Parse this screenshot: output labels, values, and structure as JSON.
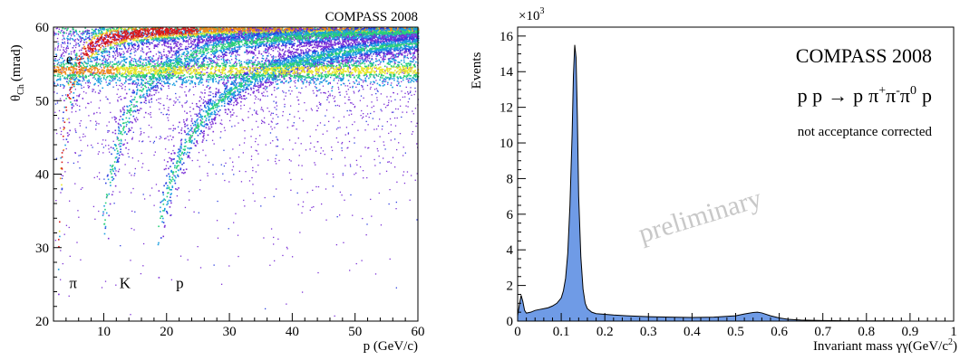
{
  "chart_data": [
    {
      "type": "heatmap",
      "title": "COMPASS 2008",
      "xlabel": "p (GeV/c)",
      "ylabel_main": "θ",
      "ylabel_sub": "Ch",
      "ylabel_unit": "(mrad)",
      "xlim": [
        2,
        60
      ],
      "ylim": [
        20,
        60
      ],
      "xticks": [
        10,
        20,
        30,
        40,
        50,
        60
      ],
      "yticks": [
        20,
        30,
        40,
        50,
        60
      ],
      "annotations": [
        {
          "text": "e",
          "x": 4,
          "y": 55
        },
        {
          "text": "π",
          "x": 4.5,
          "y": 24.5
        },
        {
          "text": "K",
          "x": 12.5,
          "y": 24.5
        },
        {
          "text": "p",
          "x": 21.5,
          "y": 24.5
        }
      ],
      "bands": [
        {
          "label": "e",
          "mass": 0.000511,
          "sat": 55
        },
        {
          "label": "π",
          "mass": 0.1396,
          "sat": 54
        },
        {
          "label": "K",
          "mass": 0.4937,
          "sat": 54
        },
        {
          "label": "p",
          "mass": 0.9383,
          "sat": 54
        }
      ],
      "colors": [
        "#ffffff",
        "#7b2fd6",
        "#2d3fe0",
        "#1a9ee0",
        "#2ad07a",
        "#e8e82a",
        "#f08a1a",
        "#d91a1a"
      ]
    },
    {
      "type": "area",
      "title": "COMPASS 2008",
      "reaction": {
        "lhs": "p p",
        "arrow": "→",
        "rhs_p": "p",
        "pi_plus": "π",
        "plus": "+",
        "pi_minus": "π",
        "minus": "-",
        "pi_zero": "π",
        "zero": "0",
        "last": "p"
      },
      "note": "not acceptance corrected",
      "watermark": "preliminary",
      "ylabel": "Events",
      "y_multiplier_base": "×10",
      "y_multiplier_exp": "3",
      "xlabel_main": "Invariant mass γγ",
      "xlabel_unit": "(GeV/c",
      "xlabel_exp": "2",
      "xlabel_close": ")",
      "xlim": [
        0,
        1
      ],
      "ylim": [
        0,
        16.5
      ],
      "xticks": [
        "0",
        "0.1",
        "0.2",
        "0.3",
        "0.4",
        "0.5",
        "0.6",
        "0.7",
        "0.8",
        "0.9",
        "1"
      ],
      "yticks": [
        "0",
        "2",
        "4",
        "6",
        "8",
        "10",
        "12",
        "14",
        "16"
      ],
      "x": [
        0.0,
        0.004,
        0.008,
        0.012,
        0.016,
        0.02,
        0.03,
        0.04,
        0.05,
        0.06,
        0.07,
        0.08,
        0.09,
        0.1,
        0.105,
        0.11,
        0.115,
        0.12,
        0.125,
        0.128,
        0.131,
        0.134,
        0.137,
        0.14,
        0.145,
        0.15,
        0.155,
        0.16,
        0.17,
        0.18,
        0.2,
        0.22,
        0.25,
        0.3,
        0.35,
        0.4,
        0.45,
        0.5,
        0.52,
        0.54,
        0.55,
        0.56,
        0.58,
        0.6,
        0.62,
        0.65,
        0.7,
        0.75,
        0.8,
        0.85,
        0.9,
        0.95,
        1.0
      ],
      "y": [
        0.3,
        0.9,
        1.45,
        1.1,
        0.6,
        0.45,
        0.5,
        0.6,
        0.65,
        0.7,
        0.75,
        0.85,
        1.0,
        1.3,
        1.7,
        2.4,
        3.8,
        6.5,
        10.5,
        13.8,
        15.5,
        14.8,
        11.5,
        7.0,
        3.6,
        1.8,
        1.0,
        0.7,
        0.5,
        0.42,
        0.38,
        0.34,
        0.3,
        0.25,
        0.22,
        0.2,
        0.22,
        0.3,
        0.4,
        0.48,
        0.5,
        0.46,
        0.3,
        0.18,
        0.1,
        0.06,
        0.03,
        0.02,
        0.01,
        0.01,
        0.0,
        0.0,
        0.0
      ],
      "fill_color": "#6f9be6",
      "line_color": "#000000"
    }
  ]
}
